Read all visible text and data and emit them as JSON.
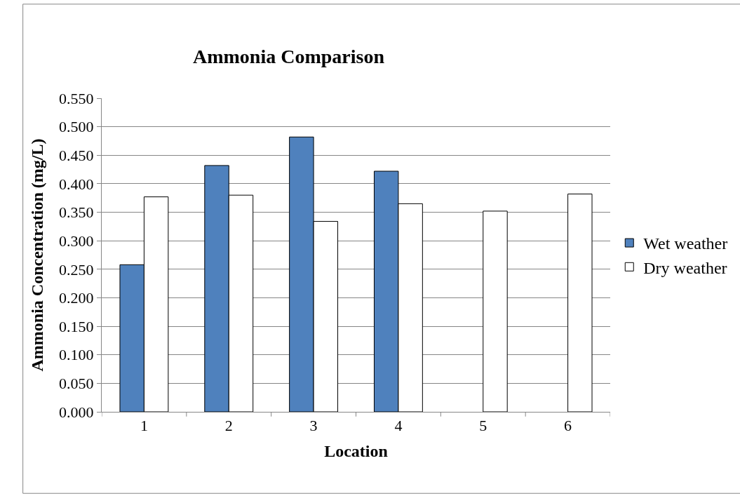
{
  "chart_data": {
    "type": "bar",
    "title": "Ammonia Comparison",
    "xlabel": "Location",
    "ylabel": "Ammonia Concentration (mg/L)",
    "categories": [
      "1",
      "2",
      "3",
      "4",
      "5",
      "6"
    ],
    "series": [
      {
        "name": "Wet weather",
        "color": "#4f81bd",
        "values": [
          0.258,
          0.432,
          0.482,
          0.422,
          null,
          null
        ]
      },
      {
        "name": "Dry weather",
        "color": "#ffffff",
        "values": [
          0.377,
          0.38,
          0.334,
          0.365,
          0.352,
          0.382
        ]
      }
    ],
    "ylim": [
      0,
      0.55
    ],
    "yticks": [
      {
        "value": 0,
        "label": "0.000"
      },
      {
        "value": 0.05,
        "label": "0.050"
      },
      {
        "value": 0.1,
        "label": "0.100"
      },
      {
        "value": 0.15,
        "label": "0.150"
      },
      {
        "value": 0.2,
        "label": "0.200"
      },
      {
        "value": 0.25,
        "label": "0.250"
      },
      {
        "value": 0.3,
        "label": "0.300"
      },
      {
        "value": 0.35,
        "label": "0.350"
      },
      {
        "value": 0.4,
        "label": "0.400"
      },
      {
        "value": 0.45,
        "label": "0.450"
      },
      {
        "value": 0.5,
        "label": "0.500"
      },
      {
        "value": 0.55,
        "label": "0.550"
      }
    ],
    "grid": "y",
    "legend": "right"
  }
}
